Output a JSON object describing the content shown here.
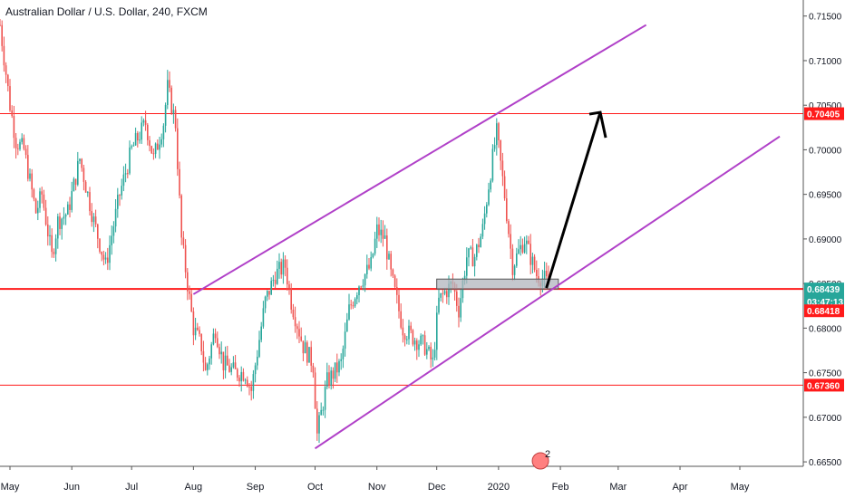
{
  "title": "Australian Dollar / U.S. Dollar, 240, FXCM",
  "colors": {
    "up": "#26a69a",
    "down": "#ef5350",
    "level": "#ff1a1a",
    "channel": "#b040c8",
    "zone": "#b2b5be",
    "arrow": "#000000",
    "axis_text": "#131722"
  },
  "chart_data": {
    "type": "candlestick",
    "x_ticks": [
      "May",
      "Jun",
      "Jul",
      "Aug",
      "Sep",
      "Oct",
      "Nov",
      "Dec",
      "2020",
      "Feb",
      "Mar",
      "Apr",
      "May"
    ],
    "y_ticks": [
      "0.71500",
      "0.71000",
      "0.70500",
      "0.70000",
      "0.69500",
      "0.69000",
      "0.68500",
      "0.68000",
      "0.67500",
      "0.67000",
      "0.66500"
    ],
    "ylim": [
      0.6645,
      0.7168
    ],
    "price_path": [
      [
        "2019-04-26",
        0.714
      ],
      [
        "2019-05-01",
        0.705
      ],
      [
        "2019-05-04",
        0.701
      ],
      [
        "2019-05-08",
        0.7
      ],
      [
        "2019-05-14",
        0.693
      ],
      [
        "2019-05-17",
        0.695
      ],
      [
        "2019-05-22",
        0.688
      ],
      [
        "2019-05-25",
        0.692
      ],
      [
        "2019-05-30",
        0.693
      ],
      [
        "2019-06-05",
        0.699
      ],
      [
        "2019-06-12",
        0.692
      ],
      [
        "2019-06-18",
        0.687
      ],
      [
        "2019-06-25",
        0.695
      ],
      [
        "2019-07-01",
        0.7
      ],
      [
        "2019-07-08",
        0.703
      ],
      [
        "2019-07-12",
        0.699
      ],
      [
        "2019-07-17",
        0.703
      ],
      [
        "2019-07-19",
        0.707
      ],
      [
        "2019-07-23",
        0.703
      ],
      [
        "2019-07-26",
        0.69
      ],
      [
        "2019-08-01",
        0.68
      ],
      [
        "2019-08-05",
        0.678
      ],
      [
        "2019-08-07",
        0.675
      ],
      [
        "2019-08-12",
        0.68
      ],
      [
        "2019-08-16",
        0.676
      ],
      [
        "2019-08-22",
        0.675
      ],
      [
        "2019-08-27",
        0.675
      ],
      [
        "2019-08-30",
        0.673
      ],
      [
        "2019-09-06",
        0.683
      ],
      [
        "2019-09-11",
        0.686
      ],
      [
        "2019-09-16",
        0.687
      ],
      [
        "2019-09-19",
        0.683
      ],
      [
        "2019-09-25",
        0.678
      ],
      [
        "2019-09-30",
        0.676
      ],
      [
        "2019-10-02",
        0.668
      ],
      [
        "2019-10-07",
        0.674
      ],
      [
        "2019-10-14",
        0.676
      ],
      [
        "2019-10-18",
        0.682
      ],
      [
        "2019-10-23",
        0.685
      ],
      [
        "2019-10-29",
        0.687
      ],
      [
        "2019-11-01",
        0.691
      ],
      [
        "2019-11-05",
        0.69
      ],
      [
        "2019-11-08",
        0.686
      ],
      [
        "2019-11-14",
        0.68
      ],
      [
        "2019-11-19",
        0.679
      ],
      [
        "2019-11-25",
        0.678
      ],
      [
        "2019-11-29",
        0.676
      ],
      [
        "2019-12-02",
        0.683
      ],
      [
        "2019-12-05",
        0.684
      ],
      [
        "2019-12-09",
        0.685
      ],
      [
        "2019-12-12",
        0.682
      ],
      [
        "2019-12-16",
        0.688
      ],
      [
        "2019-12-20",
        0.688
      ],
      [
        "2019-12-24",
        0.691
      ],
      [
        "2019-12-27",
        0.696
      ],
      [
        "2019-12-31",
        0.702
      ],
      [
        "2020-01-04",
        0.695
      ],
      [
        "2020-01-08",
        0.687
      ],
      [
        "2020-01-10",
        0.688
      ],
      [
        "2020-01-14",
        0.69
      ],
      [
        "2020-01-17",
        0.688
      ],
      [
        "2020-01-20",
        0.686
      ],
      [
        "2020-01-24",
        0.6855
      ],
      [
        "2020-01-27",
        0.6845
      ]
    ],
    "levels": [
      {
        "price": 0.70405,
        "label": "0.70405"
      },
      {
        "price": 0.68439,
        "label": "0.68439"
      },
      {
        "price": 0.6736,
        "label": "0.67360"
      }
    ],
    "current_badge": {
      "price_label": "0.68439",
      "countdown": "03:47:13"
    },
    "marker_badge": {
      "price": 0.68418,
      "label": "0.68418"
    },
    "channel": {
      "lower": [
        [
          "2019-10-01",
          0.6665
        ],
        [
          "2020-05-21",
          0.7015
        ]
      ],
      "upper": [
        [
          "2019-08-01",
          0.6838
        ],
        [
          "2020-03-15",
          0.714
        ]
      ]
    },
    "support_zone": {
      "from": "2019-12-01",
      "to": "2020-01-31",
      "low": 0.68439,
      "high": 0.6855
    },
    "projection_arrow": {
      "from": [
        "2020-01-25",
        0.6845
      ],
      "to": [
        "2020-02-21",
        0.7042
      ]
    },
    "events_badge": "2"
  }
}
